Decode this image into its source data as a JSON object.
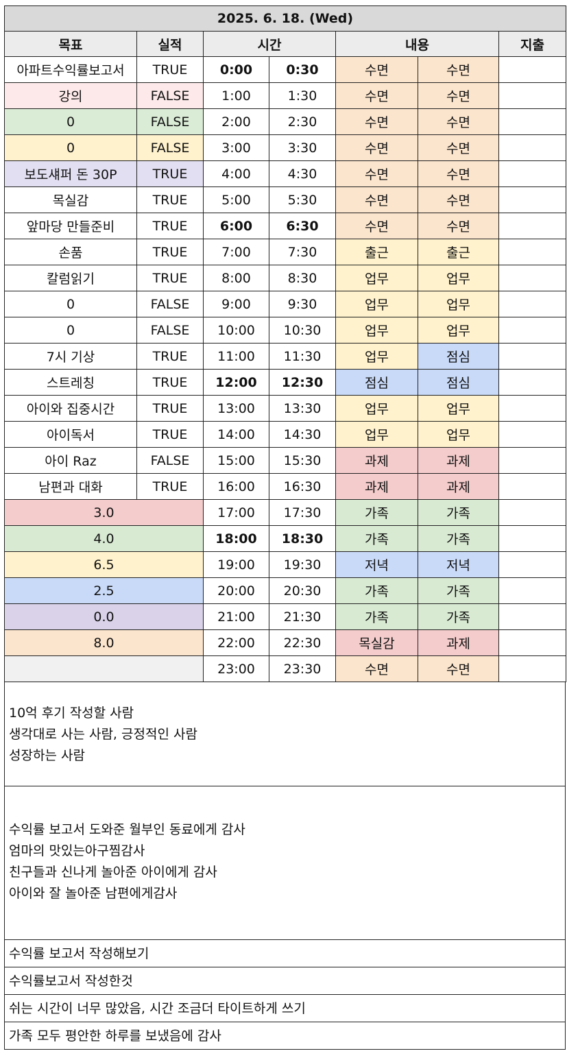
{
  "date": "2025. 6. 18. (Wed)",
  "headers": {
    "goal": "목표",
    "result": "실적",
    "time": "시간",
    "content": "내용",
    "expense": "지출"
  },
  "rows": [
    {
      "goal": "아파트수익률보고서",
      "result": "TRUE",
      "t1": "0:00",
      "t2": "0:30",
      "c1": "수면",
      "c2": "수면"
    },
    {
      "goal": "강의",
      "result": "FALSE",
      "t1": "1:00",
      "t2": "1:30",
      "c1": "수면",
      "c2": "수면"
    },
    {
      "goal": "0",
      "result": "FALSE",
      "t1": "2:00",
      "t2": "2:30",
      "c1": "수면",
      "c2": "수면"
    },
    {
      "goal": "0",
      "result": "FALSE",
      "t1": "3:00",
      "t2": "3:30",
      "c1": "수면",
      "c2": "수면"
    },
    {
      "goal": "보도섀퍼 돈 30P",
      "result": "TRUE",
      "t1": "4:00",
      "t2": "4:30",
      "c1": "수면",
      "c2": "수면"
    },
    {
      "goal": "목실감",
      "result": "TRUE",
      "t1": "5:00",
      "t2": "5:30",
      "c1": "수면",
      "c2": "수면"
    },
    {
      "goal": "앞마당 만들준비",
      "result": "TRUE",
      "t1": "6:00",
      "t2": "6:30",
      "c1": "수면",
      "c2": "수면"
    },
    {
      "goal": "손품",
      "result": "TRUE",
      "t1": "7:00",
      "t2": "7:30",
      "c1": "출근",
      "c2": "출근"
    },
    {
      "goal": "칼럼읽기",
      "result": "TRUE",
      "t1": "8:00",
      "t2": "8:30",
      "c1": "업무",
      "c2": "업무"
    },
    {
      "goal": "0",
      "result": "FALSE",
      "t1": "9:00",
      "t2": "9:30",
      "c1": "업무",
      "c2": "업무"
    },
    {
      "goal": "0",
      "result": "FALSE",
      "t1": "10:00",
      "t2": "10:30",
      "c1": "업무",
      "c2": "업무"
    },
    {
      "goal": "7시 기상",
      "result": "TRUE",
      "t1": "11:00",
      "t2": "11:30",
      "c1": "업무",
      "c2": "점심"
    },
    {
      "goal": "스트레칭",
      "result": "TRUE",
      "t1": "12:00",
      "t2": "12:30",
      "c1": "점심",
      "c2": "점심"
    },
    {
      "goal": "아이와 집중시간",
      "result": "TRUE",
      "t1": "13:00",
      "t2": "13:30",
      "c1": "업무",
      "c2": "업무"
    },
    {
      "goal": "아이독서",
      "result": "TRUE",
      "t1": "14:00",
      "t2": "14:30",
      "c1": "업무",
      "c2": "업무"
    },
    {
      "goal": "아이 Raz",
      "result": "FALSE",
      "t1": "15:00",
      "t2": "15:30",
      "c1": "과제",
      "c2": "과제"
    },
    {
      "goal": "남편과 대화",
      "result": "TRUE",
      "t1": "16:00",
      "t2": "16:30",
      "c1": "과제",
      "c2": "과제"
    },
    {
      "summary": "3.0",
      "t1": "17:00",
      "t2": "17:30",
      "c1": "가족",
      "c2": "가족"
    },
    {
      "summary": "4.0",
      "t1": "18:00",
      "t2": "18:30",
      "c1": "가족",
      "c2": "가족"
    },
    {
      "summary": "6.5",
      "t1": "19:00",
      "t2": "19:30",
      "c1": "저녁",
      "c2": "저녁"
    },
    {
      "summary": "2.5",
      "t1": "20:00",
      "t2": "20:30",
      "c1": "가족",
      "c2": "가족"
    },
    {
      "summary": "0.0",
      "t1": "21:00",
      "t2": "21:30",
      "c1": "가족",
      "c2": "가족"
    },
    {
      "summary": "8.0",
      "t1": "22:00",
      "t2": "22:30",
      "c1": "목실감",
      "c2": "과제"
    },
    {
      "summary": "",
      "t1": "23:00",
      "t2": "23:30",
      "c1": "수면",
      "c2": "수면"
    }
  ],
  "notes1": [
    "10억 후기 작성할 사람",
    "생각대로 사는 사람, 긍정적인 사람",
    "성장하는 사람"
  ],
  "notes2": [
    "수익률 보고서 도와준 월부인 동료에게 감사",
    "엄마의 맛있는아구찜감사",
    "친구들과 신나게 놀아준 아이에게 감사",
    "아이와 잘 놀아준 남편에게감사"
  ],
  "footer": [
    "수익률 보고서 작성해보기",
    "수익률보고서 작성한것",
    "쉬는 시간이 너무 많았음, 시간 조금더 타이트하게 쓰기",
    "가족 모두 평안한 하루를 보냈음에 감사"
  ],
  "colors": {
    "sleep": "#fce5cd",
    "work": "#fff2cc",
    "lunch": "#c9daf8",
    "task": "#f4cccc",
    "family": "#d9ead3",
    "dinner": "#c9daf8"
  }
}
